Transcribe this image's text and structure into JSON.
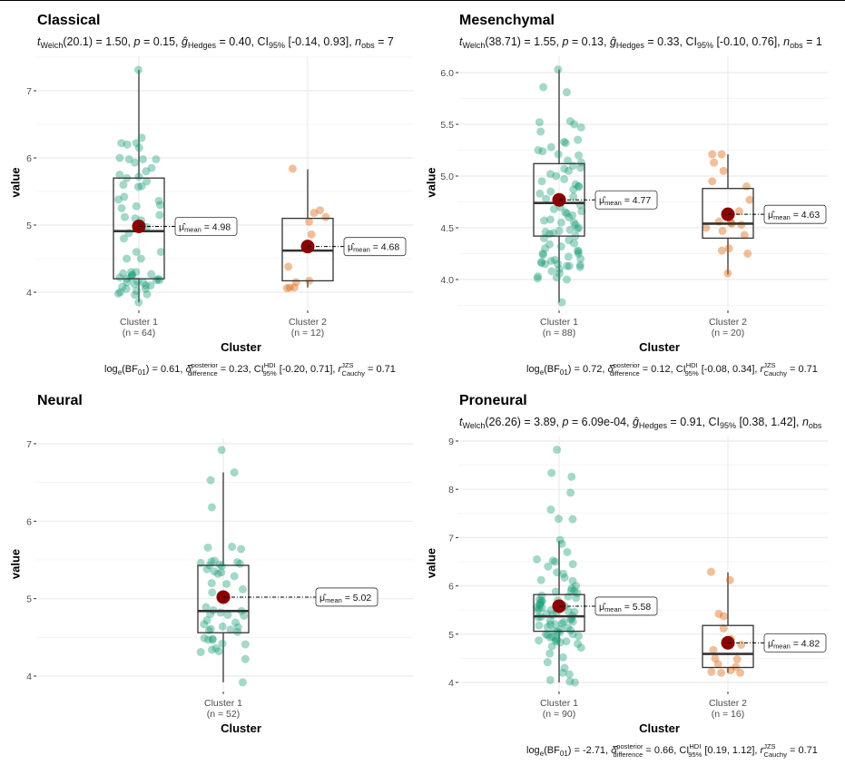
{
  "chart_data": [
    {
      "type": "box",
      "title": "Classical",
      "subtitle": {
        "welch_df": "20.1",
        "t": "1.50",
        "p": "0.15",
        "g_hedges": "0.40",
        "ci95": "[-0.14, 0.93]",
        "n_obs": "7"
      },
      "subtitle_text": "t Welch(20.1) = 1.50, p = 0.15, ĝ Hedges = 0.40, CI95% [-0.14, 0.93], n obs = 7",
      "caption": {
        "log_bf01": "0.61",
        "delta_posterior_difference": "0.23",
        "ci95_hdi": "[-0.20, 0.71]",
        "r_cauchy_jzs": "0.71"
      },
      "xlabel": "Cluster",
      "ylabel": "value",
      "yticks": [
        4,
        5,
        6,
        7
      ],
      "ylim": [
        3.75,
        7.5
      ],
      "groups": [
        {
          "name": "Cluster 1",
          "n_label": "(n = 64)",
          "color": "#1b9e77",
          "box": {
            "q1": 4.2,
            "median": 4.91,
            "q3": 5.7,
            "whisker_low": 3.85,
            "whisker_high": 7.31
          },
          "mean": 4.98,
          "mean_label": "4.98",
          "points": [
            7.31,
            6.3,
            6.22,
            6.2,
            6.22,
            6.15,
            6.0,
            5.98,
            5.98,
            5.93,
            5.98,
            5.85,
            5.8,
            5.75,
            5.72,
            5.7,
            5.65,
            5.6,
            5.58,
            5.57,
            5.42,
            5.38,
            5.36,
            5.3,
            5.25,
            5.28,
            5.15,
            5.12,
            5.1,
            5.07,
            4.97,
            4.88,
            4.8,
            4.6,
            4.6,
            4.5,
            4.5,
            4.3,
            4.28,
            4.27,
            4.26,
            4.25,
            4.22,
            4.2,
            4.2,
            4.18,
            4.16,
            4.15,
            4.14,
            4.12,
            4.1,
            4.1,
            4.08,
            4.05,
            4.02,
            4.0,
            3.98,
            3.96,
            3.97,
            4.05,
            4.18,
            4.22,
            4.3,
            3.85
          ]
        },
        {
          "name": "Cluster 2",
          "n_label": "(n = 12)",
          "color": "#d95f02",
          "box": {
            "q1": 4.17,
            "median": 4.62,
            "q3": 5.1,
            "whisker_low": 4.07,
            "whisker_high": 5.83
          },
          "mean": 4.68,
          "mean_label": "4.68",
          "points": [
            5.84,
            5.22,
            5.18,
            5.12,
            5.05,
            4.86,
            4.38,
            4.17,
            4.15,
            4.07,
            4.07,
            4.06
          ]
        }
      ]
    },
    {
      "type": "box",
      "title": "Mesenchymal",
      "subtitle": {
        "welch_df": "38.71",
        "t": "1.55",
        "p": "0.13",
        "g_hedges": "0.33",
        "ci95": "[-0.10, 0.76]",
        "n_obs": "1"
      },
      "subtitle_text": "t Welch(38.71) = 1.55, p = 0.13, ĝ Hedges = 0.33, CI95% [-0.10, 0.76], n obs = 1",
      "caption": {
        "log_bf01": "0.72",
        "delta_posterior_difference": "0.12",
        "ci95_hdi": "[-0.08, 0.34]",
        "r_cauchy_jzs": "0.71"
      },
      "xlabel": "Cluster",
      "ylabel": "value",
      "yticks": [
        4.0,
        4.5,
        5.0,
        5.5,
        6.0
      ],
      "ytick_labels": [
        "4.0",
        "4.5",
        "5.0",
        "5.5",
        "6.0"
      ],
      "ylim": [
        3.75,
        6.08
      ],
      "groups": [
        {
          "name": "Cluster 1",
          "n_label": "(n = 88)",
          "color": "#1b9e77",
          "box": {
            "q1": 4.42,
            "median": 4.74,
            "q3": 5.12,
            "whisker_low": 3.78,
            "whisker_high": 6.03
          },
          "mean": 4.77,
          "mean_label": "4.77",
          "points": [
            6.03,
            5.86,
            5.81,
            5.53,
            5.52,
            5.5,
            5.47,
            5.43,
            5.35,
            5.33,
            5.32,
            5.28,
            5.25,
            5.24,
            5.21,
            5.15,
            5.13,
            5.1,
            5.08,
            5.07,
            5.05,
            5.02,
            5.0,
            4.97,
            4.95,
            4.92,
            4.9,
            4.87,
            4.85,
            4.83,
            4.8,
            4.78,
            4.76,
            4.74,
            4.72,
            4.7,
            4.68,
            4.66,
            4.64,
            4.62,
            4.6,
            4.58,
            4.57,
            4.55,
            4.53,
            4.5,
            4.49,
            4.48,
            4.47,
            4.46,
            4.45,
            4.44,
            4.42,
            4.4,
            4.38,
            4.34,
            4.32,
            4.3,
            4.28,
            4.27,
            4.25,
            4.24,
            4.22,
            4.2,
            4.19,
            4.18,
            4.17,
            4.16,
            4.15,
            4.14,
            4.13,
            4.13,
            4.12,
            4.1,
            4.08,
            4.06,
            4.03,
            4.02,
            4.01,
            4.0,
            4.15,
            4.25,
            4.35,
            4.55,
            4.65,
            4.9,
            5.2,
            3.78
          ]
        },
        {
          "name": "Cluster 2",
          "n_label": "(n = 20)",
          "color": "#d95f02",
          "box": {
            "q1": 4.4,
            "median": 4.54,
            "q3": 4.88,
            "whisker_low": 4.05,
            "whisker_high": 5.21
          },
          "mean": 4.63,
          "mean_label": "4.63",
          "points": [
            5.21,
            5.21,
            5.13,
            5.05,
            4.95,
            4.9,
            4.77,
            4.66,
            4.63,
            4.56,
            4.55,
            4.54,
            4.53,
            4.5,
            4.47,
            4.43,
            4.3,
            4.28,
            4.25,
            4.06
          ]
        }
      ]
    },
    {
      "type": "box",
      "title": "Neural",
      "subtitle_text": "",
      "caption": null,
      "xlabel": "Cluster",
      "ylabel": "value",
      "yticks": [
        4,
        5,
        6,
        7
      ],
      "ylim": [
        3.85,
        7.05
      ],
      "groups": [
        {
          "name": "Cluster 1",
          "n_label": "(n = 52)",
          "color": "#1b9e77",
          "box": {
            "q1": 4.56,
            "median": 4.84,
            "q3": 5.43,
            "whisker_low": 3.92,
            "whisker_high": 6.63
          },
          "mean": 5.02,
          "mean_label": "5.02",
          "points": [
            6.92,
            6.63,
            6.53,
            6.18,
            5.67,
            5.66,
            5.64,
            5.49,
            5.48,
            5.47,
            5.46,
            5.45,
            5.44,
            5.43,
            5.42,
            5.38,
            5.35,
            5.34,
            5.32,
            5.29,
            5.2,
            5.19,
            5.12,
            5.08,
            4.89,
            4.85,
            4.84,
            4.82,
            4.8,
            4.79,
            4.78,
            4.72,
            4.69,
            4.67,
            4.64,
            4.63,
            4.61,
            4.6,
            4.59,
            4.57,
            4.49,
            4.48,
            4.47,
            4.47,
            4.42,
            4.41,
            4.36,
            4.34,
            4.32,
            4.31,
            4.22,
            3.92
          ]
        }
      ]
    },
    {
      "type": "box",
      "title": "Proneural",
      "subtitle": {
        "welch_df": "26.26",
        "t": "3.89",
        "p": "6.09e-04",
        "g_hedges": "0.91",
        "ci95": "[0.38, 1.42]",
        "n_obs": ""
      },
      "subtitle_text": "t Welch(26.26) = 3.89, p = 6.09e-04, ĝ Hedges = 0.91, CI95% [0.38, 1.42], n obs",
      "caption": {
        "log_bf01": "-2.71",
        "delta_posterior_difference": "0.66",
        "ci95_hdi": "[0.19, 1.12]",
        "r_cauchy_jzs": "0.71"
      },
      "xlabel": "Cluster",
      "ylabel": "value",
      "yticks": [
        4,
        5,
        6,
        7,
        8,
        9
      ],
      "ylim": [
        3.85,
        9.05
      ],
      "groups": [
        {
          "name": "Cluster 1",
          "n_label": "(n = 90)",
          "color": "#1b9e77",
          "box": {
            "q1": 5.06,
            "median": 5.37,
            "q3": 5.82,
            "whisker_low": 4.0,
            "whisker_high": 6.93
          },
          "mean": 5.58,
          "mean_label": "5.58",
          "points": [
            8.82,
            8.34,
            8.26,
            7.93,
            7.58,
            7.39,
            7.38,
            6.95,
            6.87,
            6.55,
            6.52,
            6.5,
            6.45,
            6.4,
            6.28,
            6.25,
            6.17,
            6.12,
            6.1,
            6.0,
            5.95,
            5.9,
            5.88,
            5.85,
            5.8,
            5.78,
            5.75,
            5.72,
            5.7,
            5.68,
            5.65,
            5.62,
            5.6,
            5.58,
            5.56,
            5.55,
            5.52,
            5.5,
            5.48,
            5.46,
            5.45,
            5.42,
            5.4,
            5.38,
            5.36,
            5.35,
            5.32,
            5.3,
            5.28,
            5.26,
            5.25,
            5.22,
            5.2,
            5.18,
            5.15,
            5.13,
            5.1,
            5.08,
            5.06,
            5.05,
            5.03,
            5.0,
            4.98,
            4.96,
            4.95,
            4.93,
            4.9,
            4.88,
            4.87,
            4.85,
            4.83,
            4.8,
            4.75,
            4.72,
            4.6,
            4.52,
            4.42,
            4.3,
            4.2,
            4.17,
            4.05,
            4.02,
            4.0,
            5.9,
            5.7,
            5.5,
            5.2,
            5.0,
            4.85,
            6.7
          ]
        },
        {
          "name": "Cluster 2",
          "n_label": "(n = 16)",
          "color": "#d95f02",
          "box": {
            "q1": 4.31,
            "median": 4.59,
            "q3": 5.18,
            "whisker_low": 4.2,
            "whisker_high": 6.28
          },
          "mean": 4.82,
          "mean_label": "4.82",
          "points": [
            6.29,
            6.12,
            5.42,
            5.37,
            5.12,
            4.9,
            4.78,
            4.67,
            4.5,
            4.48,
            4.38,
            4.32,
            4.25,
            4.22,
            4.2,
            4.2
          ]
        }
      ]
    }
  ],
  "annotations": {
    "mean_symbol": "μ̂",
    "mean_sub": "mean"
  }
}
